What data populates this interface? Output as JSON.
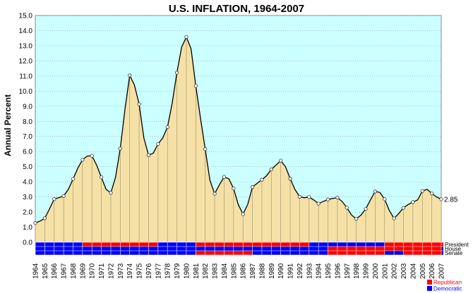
{
  "chart_data": {
    "type": "area",
    "title": "U.S. INFLATION, 1964-2007",
    "ylabel": "Annual Percent",
    "xlabel": "",
    "ylim": [
      0,
      15
    ],
    "yticks": [
      "0.0",
      "1.0",
      "2.0",
      "3.0",
      "4.0",
      "5.0",
      "6.0",
      "7.0",
      "8.0",
      "9.0",
      "10.0",
      "11.0",
      "12.0",
      "13.0",
      "14.0",
      "15.0"
    ],
    "grid": true,
    "last_value_label": "2.85",
    "x": [
      1964.0,
      1964.5,
      1965.0,
      1965.5,
      1966.0,
      1966.5,
      1967.0,
      1967.5,
      1968.0,
      1968.5,
      1969.0,
      1969.5,
      1970.0,
      1970.5,
      1971.0,
      1971.5,
      1972.0,
      1972.5,
      1973.0,
      1973.5,
      1974.0,
      1974.5,
      1975.0,
      1975.5,
      1976.0,
      1976.5,
      1977.0,
      1977.5,
      1978.0,
      1978.5,
      1979.0,
      1979.5,
      1980.0,
      1980.5,
      1981.0,
      1981.5,
      1982.0,
      1982.5,
      1983.0,
      1983.5,
      1984.0,
      1984.5,
      1985.0,
      1985.5,
      1986.0,
      1986.5,
      1987.0,
      1987.5,
      1988.0,
      1988.5,
      1989.0,
      1989.5,
      1990.0,
      1990.5,
      1991.0,
      1991.5,
      1992.0,
      1992.5,
      1993.0,
      1993.5,
      1994.0,
      1994.5,
      1995.0,
      1995.5,
      1996.0,
      1996.5,
      1997.0,
      1997.5,
      1998.0,
      1998.5,
      1999.0,
      1999.5,
      2000.0,
      2000.5,
      2001.0,
      2001.5,
      2002.0,
      2002.5,
      2003.0,
      2003.5,
      2004.0,
      2004.5,
      2005.0,
      2005.5,
      2006.0,
      2006.5,
      2007.0
    ],
    "values": [
      1.28,
      1.4,
      1.59,
      2.2,
      2.86,
      2.95,
      3.06,
      3.5,
      4.19,
      4.9,
      5.46,
      5.7,
      5.72,
      5.1,
      4.3,
      3.5,
      3.27,
      4.3,
      6.2,
      8.8,
      11.04,
      10.4,
      9.13,
      6.9,
      5.76,
      5.9,
      6.5,
      6.9,
      7.62,
      9.2,
      11.22,
      12.9,
      13.58,
      12.8,
      10.35,
      8.2,
      6.16,
      4.1,
      3.21,
      3.8,
      4.32,
      4.2,
      3.56,
      2.5,
      1.86,
      2.5,
      3.65,
      3.9,
      4.14,
      4.4,
      4.82,
      5.1,
      5.4,
      5.0,
      4.21,
      3.5,
      3.01,
      2.95,
      2.99,
      2.8,
      2.56,
      2.7,
      2.83,
      2.9,
      2.95,
      2.7,
      2.29,
      1.8,
      1.55,
      1.8,
      2.21,
      2.8,
      3.36,
      3.3,
      2.85,
      2.1,
      1.58,
      1.9,
      2.28,
      2.5,
      2.66,
      2.8,
      3.39,
      3.5,
      3.23,
      3.0,
      2.85
    ],
    "marker_x": [
      1964,
      1965,
      1966,
      1967,
      1968,
      1969,
      1970,
      1971,
      1972,
      1973,
      1974,
      1975,
      1976,
      1977,
      1978,
      1979,
      1980,
      1981,
      1982,
      1983,
      1984,
      1985,
      1986,
      1987,
      1988,
      1989,
      1990,
      1991,
      1992,
      1993,
      1994,
      1995,
      1996,
      1997,
      1998,
      1999,
      2000,
      2001,
      2002,
      2003,
      2004,
      2005,
      2006,
      2007
    ],
    "marker_values": [
      1.28,
      1.59,
      2.86,
      3.06,
      4.19,
      5.46,
      5.72,
      4.3,
      3.27,
      6.2,
      11.04,
      9.13,
      5.76,
      6.5,
      7.62,
      11.22,
      13.58,
      10.35,
      6.16,
      3.21,
      4.32,
      3.56,
      1.86,
      3.65,
      4.14,
      4.82,
      5.4,
      4.21,
      3.01,
      2.99,
      2.56,
      2.83,
      2.95,
      2.29,
      1.55,
      2.21,
      3.36,
      2.85,
      1.58,
      2.28,
      2.66,
      3.39,
      3.23,
      2.85
    ],
    "categories": [
      "1964",
      "1965",
      "1966",
      "1967",
      "1968",
      "1969",
      "1970",
      "1971",
      "1972",
      "1973",
      "1974",
      "1975",
      "1976",
      "1977",
      "1978",
      "1979",
      "1980",
      "1981",
      "1982",
      "1983",
      "1984",
      "1985",
      "1986",
      "1987",
      "1988",
      "1989",
      "1990",
      "1991",
      "1992",
      "1993",
      "1994",
      "1995",
      "1996",
      "1997",
      "1998",
      "1999",
      "2000",
      "2001",
      "2002",
      "2003",
      "2004",
      "2005",
      "2006",
      "2007"
    ],
    "party_rows": [
      {
        "label": "President",
        "segments": [
          [
            1964,
            1969,
            "D"
          ],
          [
            1969,
            1977,
            "R"
          ],
          [
            1977,
            1981,
            "D"
          ],
          [
            1981,
            1993,
            "R"
          ],
          [
            1993,
            2001,
            "D"
          ],
          [
            2001,
            2007.5,
            "R"
          ]
        ]
      },
      {
        "label": "House",
        "segments": [
          [
            1964,
            1995,
            "D"
          ],
          [
            1995,
            2007,
            "R"
          ],
          [
            2007,
            2007.5,
            "D"
          ]
        ]
      },
      {
        "label": "Senate",
        "segments": [
          [
            1964,
            1981,
            "D"
          ],
          [
            1981,
            1987,
            "R"
          ],
          [
            1987,
            1995,
            "D"
          ],
          [
            1995,
            2001,
            "R"
          ],
          [
            2001,
            2003,
            "D"
          ],
          [
            2003,
            2007,
            "R"
          ],
          [
            2007,
            2007.5,
            "D"
          ]
        ]
      }
    ],
    "legend": [
      {
        "label": "Republican",
        "color": "#ff0000"
      },
      {
        "label": "Democratic",
        "color": "#0000ff"
      }
    ],
    "colors": {
      "plot_bg": "#ccffff",
      "fill": "#f5e1a6",
      "line": "#000000",
      "republican": "#ff0000",
      "democratic": "#0000ff",
      "grid": "#999999"
    }
  }
}
